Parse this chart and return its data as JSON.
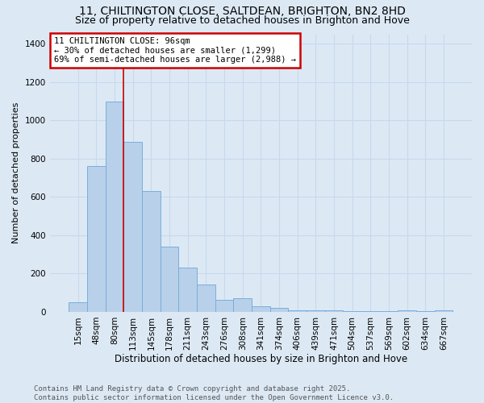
{
  "title1": "11, CHILTINGTON CLOSE, SALTDEAN, BRIGHTON, BN2 8HD",
  "title2": "Size of property relative to detached houses in Brighton and Hove",
  "xlabel": "Distribution of detached houses by size in Brighton and Hove",
  "ylabel": "Number of detached properties",
  "footnote": "Contains HM Land Registry data © Crown copyright and database right 2025.\nContains public sector information licensed under the Open Government Licence v3.0.",
  "bin_labels": [
    "15sqm",
    "48sqm",
    "80sqm",
    "113sqm",
    "145sqm",
    "178sqm",
    "211sqm",
    "243sqm",
    "276sqm",
    "308sqm",
    "341sqm",
    "374sqm",
    "406sqm",
    "439sqm",
    "471sqm",
    "504sqm",
    "537sqm",
    "569sqm",
    "602sqm",
    "634sqm",
    "667sqm"
  ],
  "bar_heights": [
    50,
    760,
    1100,
    890,
    630,
    340,
    230,
    145,
    65,
    70,
    30,
    20,
    10,
    10,
    7,
    5,
    5,
    3,
    10,
    3,
    10
  ],
  "bar_color": "#b8d0ea",
  "bar_edge_color": "#7aaedb",
  "background_color": "#dce9f5",
  "red_line_x": 2.5,
  "annotation_title": "11 CHILTINGTON CLOSE: 96sqm",
  "annotation_line1": "← 30% of detached houses are smaller (1,299)",
  "annotation_line2": "69% of semi-detached houses are larger (2,988) →",
  "annotation_box_color": "#ffffff",
  "annotation_border_color": "#cc0000",
  "red_line_color": "#cc0000",
  "ylim": [
    0,
    1450
  ],
  "yticks": [
    0,
    200,
    400,
    600,
    800,
    1000,
    1200,
    1400
  ],
  "grid_color": "#c8d8ec",
  "title_fontsize": 10,
  "subtitle_fontsize": 9,
  "footnote_fontsize": 6.5
}
